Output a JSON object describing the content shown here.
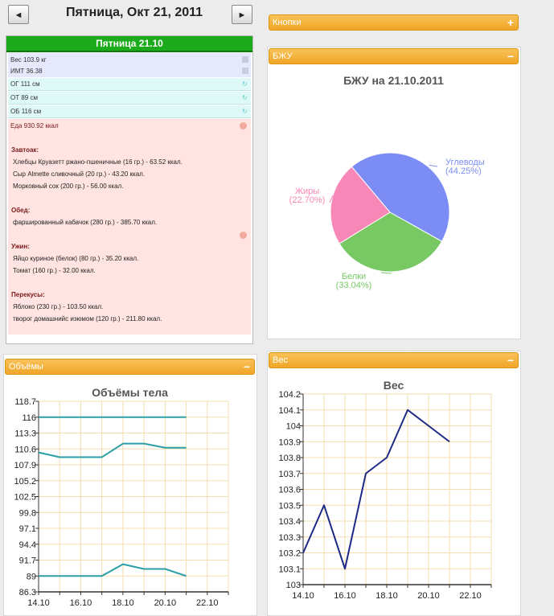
{
  "nav": {
    "prev_label": "◄",
    "next_label": "►",
    "date_title": "Пятница, Окт 21, 2011"
  },
  "day": {
    "header": "Пятница 21.10",
    "weight": "Вес 103.9 кг",
    "bmi": "ИМТ 36.38",
    "og": "ОГ 111 см",
    "ot": "ОТ 89 см",
    "ob": "ОБ 116 см",
    "food_total": "Еда 930.92 ккал",
    "meals": [
      {
        "title": "Завтоак:",
        "items": [
          "Хлебцы Круазетт ржано-пшеничные (16 гр.) - 63.52 ккал.",
          "Сыр Almette сливочный (20 гр.) - 43.20 ккал.",
          "Морковный сок (200 гр.) - 56.00 ккал."
        ]
      },
      {
        "title": "Обед:",
        "items": [
          "фаршированный кабачок (280 гр.) - 385.70 ккал."
        ]
      },
      {
        "title": "Ужин:",
        "items": [
          "Яйцо куриное (белок) (80 гр.) - 35.20 ккал.",
          "Томат (160 гр.) - 32.00 ккал."
        ]
      },
      {
        "title": "Перекусы:",
        "items": [
          "Яблоко (230 гр.) - 103.50 ккал.",
          "творог домашнийс изюмом (120 гр.) - 211.80 ккал."
        ]
      }
    ]
  },
  "panels": {
    "buttons_title": "Кнопки",
    "bju_title": "БЖУ",
    "volumes_title": "Объёмы",
    "weight_title": "Вес",
    "expand_icon": "+",
    "collapse_icon": "−"
  },
  "colors": {
    "accent": "#f0a628",
    "green": "#1bab1b",
    "pie_carbs": "#7b8cf5",
    "pie_protein": "#78c864",
    "pie_fat": "#f687b6",
    "line_teal": "#2a9fa6",
    "line_navy": "#1e2a85"
  },
  "chart_data": [
    {
      "type": "pie",
      "title": "БЖУ на 21.10.2011",
      "slices": [
        {
          "label": "Углеводы",
          "pct_label": "(44.25%)",
          "value": 44.25
        },
        {
          "label": "Белки",
          "pct_label": "(33.04%)",
          "value": 33.04
        },
        {
          "label": "Жиры",
          "pct_label": "(22.70%)",
          "value": 22.7
        }
      ]
    },
    {
      "type": "line",
      "title": "Объёмы тела",
      "x_ticks": [
        "14.10",
        "16.10",
        "18.10",
        "20.10",
        "22.10"
      ],
      "y_ticks": [
        "86.3",
        "89",
        "91.7",
        "94.4",
        "97.1",
        "99.8",
        "102.5",
        "105.2",
        "107.9",
        "110.6",
        "113.3",
        "116",
        "118.7"
      ],
      "xlim": [
        14,
        23
      ],
      "ylim": [
        86.3,
        118.7
      ],
      "x": [
        14,
        15,
        16,
        17,
        18,
        19,
        20,
        21
      ],
      "series": [
        {
          "values": [
            116,
            116,
            116,
            116,
            116,
            116,
            116,
            116
          ]
        },
        {
          "values": [
            110,
            109.2,
            109.2,
            109.2,
            111.5,
            111.5,
            110.8,
            110.8
          ]
        },
        {
          "values": [
            89,
            89,
            89,
            89,
            91,
            90.2,
            90.2,
            89
          ]
        }
      ]
    },
    {
      "type": "line",
      "title": "Вес",
      "x_ticks": [
        "14.10",
        "16.10",
        "18.10",
        "20.10",
        "22.10"
      ],
      "y_ticks": [
        "103",
        "103.1",
        "103.2",
        "103.3",
        "103.4",
        "103.5",
        "103.6",
        "103.7",
        "103.8",
        "103.9",
        "104",
        "104.1",
        "104.2"
      ],
      "xlim": [
        14,
        23
      ],
      "ylim": [
        103,
        104.2
      ],
      "x": [
        14,
        15,
        16,
        17,
        18,
        19,
        20,
        21
      ],
      "series": [
        {
          "values": [
            103.2,
            103.5,
            103.1,
            103.7,
            103.8,
            104.1,
            104.0,
            103.9
          ]
        }
      ]
    }
  ]
}
